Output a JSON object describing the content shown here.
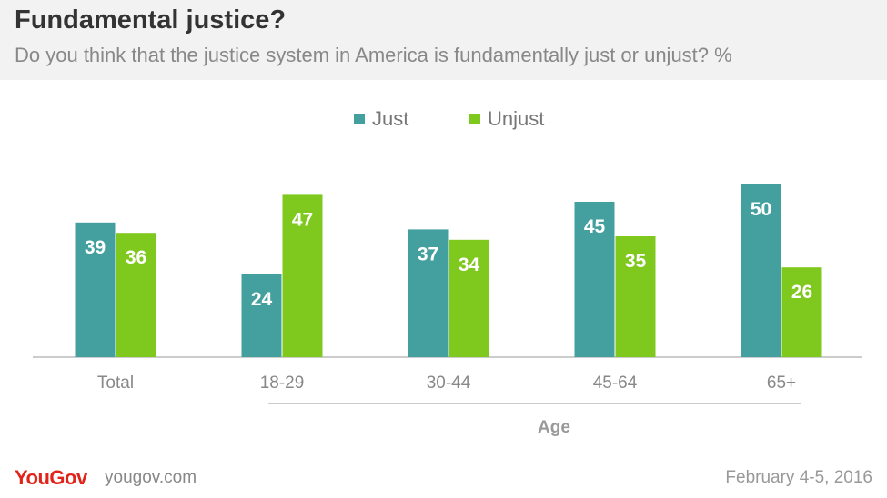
{
  "header": {
    "title": "Fundamental justice?",
    "subtitle": "Do you think that the justice system in America is fundamentally just or unjust? %"
  },
  "footer": {
    "logo": "YouGov",
    "url": "yougov.com",
    "date": "February 4-5, 2016"
  },
  "colors": {
    "just": "#449f9f",
    "unjust": "#7fc81e",
    "axis": "#cccccc",
    "category_label": "#888888",
    "group_label": "#999999"
  },
  "chart_data": {
    "type": "bar",
    "categories": [
      "Total",
      "18-29",
      "30-44",
      "45-64",
      "65+"
    ],
    "series": [
      {
        "name": "Just",
        "values": [
          39,
          24,
          37,
          45,
          50
        ]
      },
      {
        "name": "Unjust",
        "values": [
          36,
          47,
          34,
          35,
          26
        ]
      }
    ],
    "group_label": "Age",
    "ylim": [
      0,
      50
    ],
    "grid": false,
    "legend": "top-center"
  }
}
